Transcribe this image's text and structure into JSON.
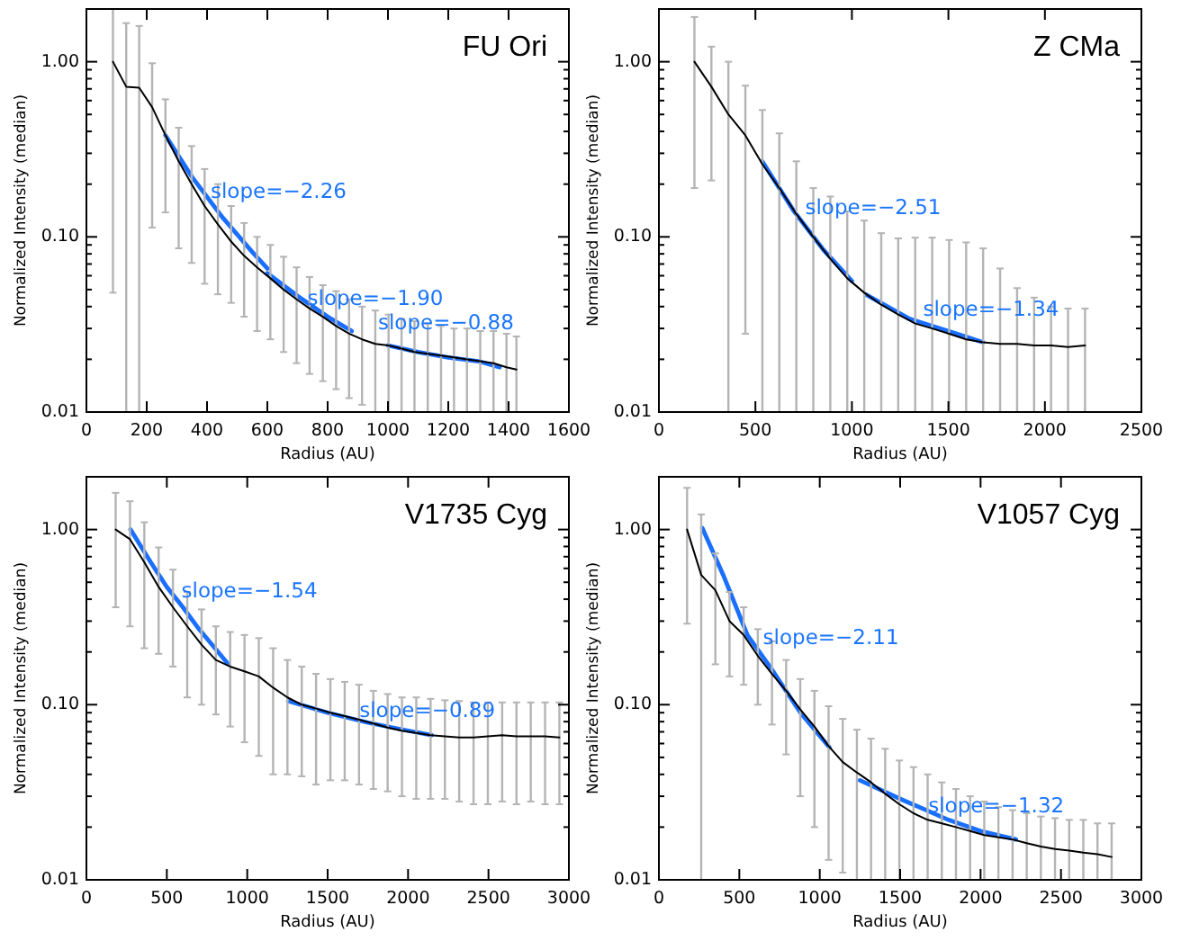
{
  "chart_data": [
    {
      "type": "line",
      "title": "FU Ori",
      "xlabel": "Radius (AU)",
      "ylabel": "Normalized Intensity (median)",
      "log": "y",
      "xlim": [
        0,
        1600
      ],
      "xticks": [
        0,
        200,
        400,
        600,
        800,
        1000,
        1200,
        1400,
        1600
      ],
      "ylim": [
        0.01,
        2
      ],
      "yticks": [
        {
          "value": 0.01,
          "label": "0.01"
        },
        {
          "value": 0.02,
          "label": null
        },
        {
          "value": 0.03,
          "label": null
        },
        {
          "value": 0.04,
          "label": null
        },
        {
          "value": 0.05,
          "label": null
        },
        {
          "value": 0.06,
          "label": null
        },
        {
          "value": 0.07,
          "label": null
        },
        {
          "value": 0.08,
          "label": null
        },
        {
          "value": 0.09,
          "label": null
        },
        {
          "value": 0.1,
          "label": "0.10"
        },
        {
          "value": 0.2,
          "label": null
        },
        {
          "value": 0.3,
          "label": null
        },
        {
          "value": 0.4,
          "label": null
        },
        {
          "value": 0.5,
          "label": null
        },
        {
          "value": 0.6,
          "label": null
        },
        {
          "value": 0.7,
          "label": null
        },
        {
          "value": 0.8,
          "label": null
        },
        {
          "value": 0.9,
          "label": null
        },
        {
          "value": 1,
          "label": "1.00"
        }
      ],
      "series": [
        {
          "color": "#000000",
          "x": [
            88,
            132,
            175,
            218,
            262,
            306,
            349,
            392,
            436,
            480,
            523,
            566,
            610,
            654,
            697,
            740,
            784,
            828,
            871,
            914,
            958,
            1002,
            1045,
            1088,
            1132,
            1176,
            1219,
            1262,
            1306,
            1350,
            1393,
            1426
          ],
          "values": [
            1.0,
            0.72,
            0.71,
            0.55,
            0.38,
            0.27,
            0.2,
            0.15,
            0.118,
            0.094,
            0.078,
            0.067,
            0.058,
            0.05,
            0.044,
            0.039,
            0.035,
            0.031,
            0.028,
            0.026,
            0.0245,
            0.024,
            0.023,
            0.022,
            0.0215,
            0.021,
            0.0205,
            0.02,
            0.0195,
            0.019,
            0.018,
            0.0175
          ],
          "errors": [
            [
              0.048,
              2.0
            ],
            [
              0.01,
              1.66
            ],
            [
              0.01,
              1.6
            ],
            [
              0.113,
              0.98
            ],
            [
              0.138,
              0.61
            ],
            [
              0.086,
              0.42
            ],
            [
              0.071,
              0.33
            ],
            [
              0.054,
              0.244
            ],
            [
              0.047,
              0.2
            ],
            [
              0.042,
              0.15
            ],
            [
              0.035,
              0.12
            ],
            [
              0.029,
              0.1
            ],
            [
              0.026,
              0.09
            ],
            [
              0.022,
              0.077
            ],
            [
              0.019,
              0.067
            ],
            [
              0.0165,
              0.059
            ],
            [
              0.015,
              0.053
            ],
            [
              0.0135,
              0.049
            ],
            [
              0.012,
              0.044
            ],
            [
              0.011,
              0.04
            ],
            [
              0.01,
              0.038
            ],
            [
              0.01,
              0.036
            ],
            [
              0.01,
              0.034
            ],
            [
              0.01,
              0.033
            ],
            [
              0.01,
              0.032
            ],
            [
              0.01,
              0.031
            ],
            [
              0.01,
              0.03
            ],
            [
              0.01,
              0.03
            ],
            [
              0.01,
              0.029
            ],
            [
              0.01,
              0.029
            ],
            [
              0.01,
              0.028
            ],
            [
              0.01,
              0.027
            ]
          ]
        },
        {
          "color": "#1a6fff",
          "x": [
            262,
            350,
            450,
            550,
            600
          ],
          "values": [
            0.38,
            0.22,
            0.13,
            0.082,
            0.066
          ]
        },
        {
          "color": "#1a6fff",
          "x": [
            600,
            700,
            800,
            880
          ],
          "values": [
            0.062,
            0.046,
            0.035,
            0.029
          ]
        },
        {
          "color": "#1a6fff",
          "x": [
            1000,
            1100,
            1200,
            1300,
            1370
          ],
          "values": [
            0.024,
            0.022,
            0.0205,
            0.0195,
            0.018
          ]
        }
      ],
      "annotations": [
        {
          "text": "slope=−2.26",
          "x": 412,
          "y": 0.18
        },
        {
          "text": "slope=−1.90",
          "x": 733,
          "y": 0.044
        },
        {
          "text": "slope=−0.88",
          "x": 967,
          "y": 0.032
        }
      ]
    },
    {
      "type": "line",
      "title": "Z CMa",
      "xlabel": "Radius (AU)",
      "ylabel": "Normalized Intensity (median)",
      "log": "y",
      "xlim": [
        0,
        2500
      ],
      "xticks": [
        0,
        500,
        1000,
        1500,
        2000,
        2500
      ],
      "ylim": [
        0.01,
        2
      ],
      "yticks": [
        {
          "value": 0.01,
          "label": "0.01"
        },
        {
          "value": 0.02,
          "label": null
        },
        {
          "value": 0.03,
          "label": null
        },
        {
          "value": 0.04,
          "label": null
        },
        {
          "value": 0.05,
          "label": null
        },
        {
          "value": 0.06,
          "label": null
        },
        {
          "value": 0.07,
          "label": null
        },
        {
          "value": 0.08,
          "label": null
        },
        {
          "value": 0.09,
          "label": null
        },
        {
          "value": 0.1,
          "label": "0.10"
        },
        {
          "value": 0.2,
          "label": null
        },
        {
          "value": 0.3,
          "label": null
        },
        {
          "value": 0.4,
          "label": null
        },
        {
          "value": 0.5,
          "label": null
        },
        {
          "value": 0.6,
          "label": null
        },
        {
          "value": 0.7,
          "label": null
        },
        {
          "value": 0.8,
          "label": null
        },
        {
          "value": 0.9,
          "label": null
        },
        {
          "value": 1,
          "label": "1.00"
        }
      ],
      "series": [
        {
          "color": "#000000",
          "x": [
            184,
            272,
            360,
            448,
            536,
            624,
            712,
            800,
            888,
            976,
            1064,
            1152,
            1240,
            1328,
            1416,
            1504,
            1592,
            1680,
            1768,
            1856,
            1944,
            2032,
            2120,
            2208
          ],
          "values": [
            1.0,
            0.72,
            0.5,
            0.38,
            0.26,
            0.19,
            0.135,
            0.1,
            0.075,
            0.058,
            0.048,
            0.041,
            0.036,
            0.032,
            0.03,
            0.028,
            0.026,
            0.025,
            0.0245,
            0.0245,
            0.024,
            0.024,
            0.0235,
            0.024
          ],
          "errors": [
            [
              0.19,
              1.8
            ],
            [
              0.21,
              1.22
            ],
            [
              0.01,
              1.0
            ],
            [
              0.028,
              0.73
            ],
            [
              0.01,
              0.53
            ],
            [
              0.01,
              0.39
            ],
            [
              0.01,
              0.27
            ],
            [
              0.01,
              0.19
            ],
            [
              0.01,
              0.17
            ],
            [
              0.01,
              0.14
            ],
            [
              0.01,
              0.124
            ],
            [
              0.01,
              0.105
            ],
            [
              0.01,
              0.098
            ],
            [
              0.01,
              0.099
            ],
            [
              0.01,
              0.099
            ],
            [
              0.01,
              0.096
            ],
            [
              0.01,
              0.093
            ],
            [
              0.01,
              0.086
            ],
            [
              0.01,
              0.066
            ],
            [
              0.01,
              0.051
            ],
            [
              0.01,
              0.045
            ],
            [
              0.01,
              0.04
            ],
            [
              0.01,
              0.039
            ],
            [
              0.01,
              0.039
            ]
          ]
        },
        {
          "color": "#1a6fff",
          "x": [
            535,
            700,
            850,
            1000
          ],
          "values": [
            0.27,
            0.14,
            0.085,
            0.056
          ]
        },
        {
          "color": "#1a6fff",
          "x": [
            1070,
            1300,
            1500,
            1680
          ],
          "values": [
            0.047,
            0.034,
            0.029,
            0.025
          ]
        }
      ],
      "annotations": [
        {
          "text": "slope=−2.51",
          "x": 758,
          "y": 0.145
        },
        {
          "text": "slope=−1.34",
          "x": 1369,
          "y": 0.038
        }
      ]
    },
    {
      "type": "line",
      "title": "V1735 Cyg",
      "xlabel": "Radius (AU)",
      "ylabel": "Normalized Intensity (median)",
      "log": "y",
      "xlim": [
        0,
        3000
      ],
      "xticks": [
        0,
        500,
        1000,
        1500,
        2000,
        2500,
        3000
      ],
      "ylim": [
        0.01,
        2
      ],
      "yticks": [
        {
          "value": 0.01,
          "label": "0.01"
        },
        {
          "value": 0.02,
          "label": null
        },
        {
          "value": 0.03,
          "label": null
        },
        {
          "value": 0.04,
          "label": null
        },
        {
          "value": 0.05,
          "label": null
        },
        {
          "value": 0.06,
          "label": null
        },
        {
          "value": 0.07,
          "label": null
        },
        {
          "value": 0.08,
          "label": null
        },
        {
          "value": 0.09,
          "label": null
        },
        {
          "value": 0.1,
          "label": "0.10"
        },
        {
          "value": 0.2,
          "label": null
        },
        {
          "value": 0.3,
          "label": null
        },
        {
          "value": 0.4,
          "label": null
        },
        {
          "value": 0.5,
          "label": null
        },
        {
          "value": 0.6,
          "label": null
        },
        {
          "value": 0.7,
          "label": null
        },
        {
          "value": 0.8,
          "label": null
        },
        {
          "value": 0.9,
          "label": null
        },
        {
          "value": 1,
          "label": "1.00"
        }
      ],
      "series": [
        {
          "color": "#000000",
          "x": [
            182,
            271,
            360,
            449,
            538,
            627,
            716,
            805,
            894,
            983,
            1072,
            1161,
            1250,
            1339,
            1428,
            1517,
            1606,
            1695,
            1784,
            1873,
            1962,
            2051,
            2140,
            2229,
            2318,
            2407,
            2496,
            2585,
            2674,
            2763,
            2852,
            2941
          ],
          "values": [
            1.0,
            0.88,
            0.65,
            0.47,
            0.36,
            0.28,
            0.22,
            0.18,
            0.165,
            0.155,
            0.145,
            0.125,
            0.11,
            0.1,
            0.095,
            0.09,
            0.086,
            0.082,
            0.078,
            0.074,
            0.071,
            0.069,
            0.067,
            0.066,
            0.065,
            0.065,
            0.066,
            0.067,
            0.066,
            0.066,
            0.066,
            0.065
          ],
          "errors": [
            [
              0.36,
              1.62
            ],
            [
              0.28,
              1.45
            ],
            [
              0.21,
              1.1
            ],
            [
              0.195,
              0.79
            ],
            [
              0.165,
              0.59
            ],
            [
              0.11,
              0.44
            ],
            [
              0.1,
              0.35
            ],
            [
              0.088,
              0.28
            ],
            [
              0.075,
              0.26
            ],
            [
              0.061,
              0.25
            ],
            [
              0.051,
              0.24
            ],
            [
              0.04,
              0.21
            ],
            [
              0.04,
              0.18
            ],
            [
              0.039,
              0.165
            ],
            [
              0.035,
              0.15
            ],
            [
              0.037,
              0.14
            ],
            [
              0.037,
              0.135
            ],
            [
              0.035,
              0.13
            ],
            [
              0.033,
              0.12
            ],
            [
              0.032,
              0.115
            ],
            [
              0.03,
              0.11
            ],
            [
              0.029,
              0.11
            ],
            [
              0.029,
              0.108
            ],
            [
              0.029,
              0.106
            ],
            [
              0.028,
              0.105
            ],
            [
              0.027,
              0.103
            ],
            [
              0.027,
              0.103
            ],
            [
              0.028,
              0.103
            ],
            [
              0.027,
              0.103
            ],
            [
              0.028,
              0.103
            ],
            [
              0.027,
              0.103
            ],
            [
              0.027,
              0.103
            ]
          ]
        },
        {
          "color": "#1a6fff",
          "x": [
            274,
            400,
            500,
            600,
            700,
            883
          ],
          "values": [
            1.0,
            0.65,
            0.47,
            0.36,
            0.27,
            0.17
          ]
        },
        {
          "color": "#1a6fff",
          "x": [
            1255,
            1500,
            1750,
            2000,
            2146
          ],
          "values": [
            0.105,
            0.09,
            0.079,
            0.071,
            0.067
          ]
        }
      ],
      "annotations": [
        {
          "text": "slope=−1.54",
          "x": 591,
          "y": 0.44
        },
        {
          "text": "slope=−0.89",
          "x": 1697,
          "y": 0.092
        }
      ]
    },
    {
      "type": "line",
      "title": "V1057 Cyg",
      "xlabel": "Radius (AU)",
      "ylabel": "Normalized Intensity (median)",
      "log": "y",
      "xlim": [
        0,
        3000
      ],
      "xticks": [
        0,
        500,
        1000,
        1500,
        2000,
        2500,
        3000
      ],
      "ylim": [
        0.01,
        2
      ],
      "yticks": [
        {
          "value": 0.01,
          "label": "0.01"
        },
        {
          "value": 0.02,
          "label": null
        },
        {
          "value": 0.03,
          "label": null
        },
        {
          "value": 0.04,
          "label": null
        },
        {
          "value": 0.05,
          "label": null
        },
        {
          "value": 0.06,
          "label": null
        },
        {
          "value": 0.07,
          "label": null
        },
        {
          "value": 0.08,
          "label": null
        },
        {
          "value": 0.09,
          "label": null
        },
        {
          "value": 0.1,
          "label": "0.10"
        },
        {
          "value": 0.2,
          "label": null
        },
        {
          "value": 0.3,
          "label": null
        },
        {
          "value": 0.4,
          "label": null
        },
        {
          "value": 0.5,
          "label": null
        },
        {
          "value": 0.6,
          "label": null
        },
        {
          "value": 0.7,
          "label": null
        },
        {
          "value": 0.8,
          "label": null
        },
        {
          "value": 0.9,
          "label": null
        },
        {
          "value": 1,
          "label": "1.00"
        }
      ],
      "series": [
        {
          "color": "#000000",
          "x": [
            175,
            263,
            351,
            439,
            527,
            615,
            703,
            791,
            879,
            967,
            1055,
            1143,
            1231,
            1319,
            1407,
            1495,
            1583,
            1671,
            1759,
            1847,
            1935,
            2023,
            2111,
            2199,
            2287,
            2375,
            2463,
            2551,
            2639,
            2727,
            2815
          ],
          "values": [
            1.0,
            0.55,
            0.45,
            0.3,
            0.25,
            0.19,
            0.15,
            0.12,
            0.094,
            0.075,
            0.058,
            0.047,
            0.041,
            0.036,
            0.031,
            0.027,
            0.024,
            0.022,
            0.021,
            0.02,
            0.019,
            0.018,
            0.0175,
            0.017,
            0.0162,
            0.0155,
            0.015,
            0.0147,
            0.0143,
            0.014,
            0.0135
          ],
          "errors": [
            [
              0.29,
              1.73
            ],
            [
              0.01,
              1.22
            ],
            [
              0.17,
              0.73
            ],
            [
              0.145,
              0.44
            ],
            [
              0.13,
              0.36
            ],
            [
              0.1,
              0.27
            ],
            [
              0.077,
              0.23
            ],
            [
              0.052,
              0.18
            ],
            [
              0.03,
              0.14
            ],
            [
              0.02,
              0.12
            ],
            [
              0.013,
              0.098
            ],
            [
              0.011,
              0.083
            ],
            [
              0.01,
              0.072
            ],
            [
              0.01,
              0.064
            ],
            [
              0.01,
              0.056
            ],
            [
              0.01,
              0.048
            ],
            [
              0.01,
              0.044
            ],
            [
              0.01,
              0.04
            ],
            [
              0.01,
              0.036
            ],
            [
              0.01,
              0.033
            ],
            [
              0.01,
              0.03
            ],
            [
              0.01,
              0.028
            ],
            [
              0.01,
              0.026
            ],
            [
              0.01,
              0.025
            ],
            [
              0.01,
              0.024
            ],
            [
              0.01,
              0.023
            ],
            [
              0.01,
              0.0225
            ],
            [
              0.01,
              0.022
            ],
            [
              0.01,
              0.022
            ],
            [
              0.01,
              0.021
            ],
            [
              0.01,
              0.021
            ]
          ]
        },
        {
          "color": "#1a6fff",
          "x": [
            270,
            400,
            550,
            700,
            880,
            1060
          ],
          "values": [
            1.02,
            0.55,
            0.25,
            0.16,
            0.09,
            0.057
          ]
        },
        {
          "color": "#1a6fff",
          "x": [
            1250,
            1500,
            1800,
            2000,
            2220
          ],
          "values": [
            0.037,
            0.029,
            0.022,
            0.019,
            0.017
          ]
        }
      ],
      "annotations": [
        {
          "text": "slope=−2.11",
          "x": 647,
          "y": 0.24
        },
        {
          "text": "slope=−1.32",
          "x": 1675,
          "y": 0.026
        }
      ]
    }
  ]
}
